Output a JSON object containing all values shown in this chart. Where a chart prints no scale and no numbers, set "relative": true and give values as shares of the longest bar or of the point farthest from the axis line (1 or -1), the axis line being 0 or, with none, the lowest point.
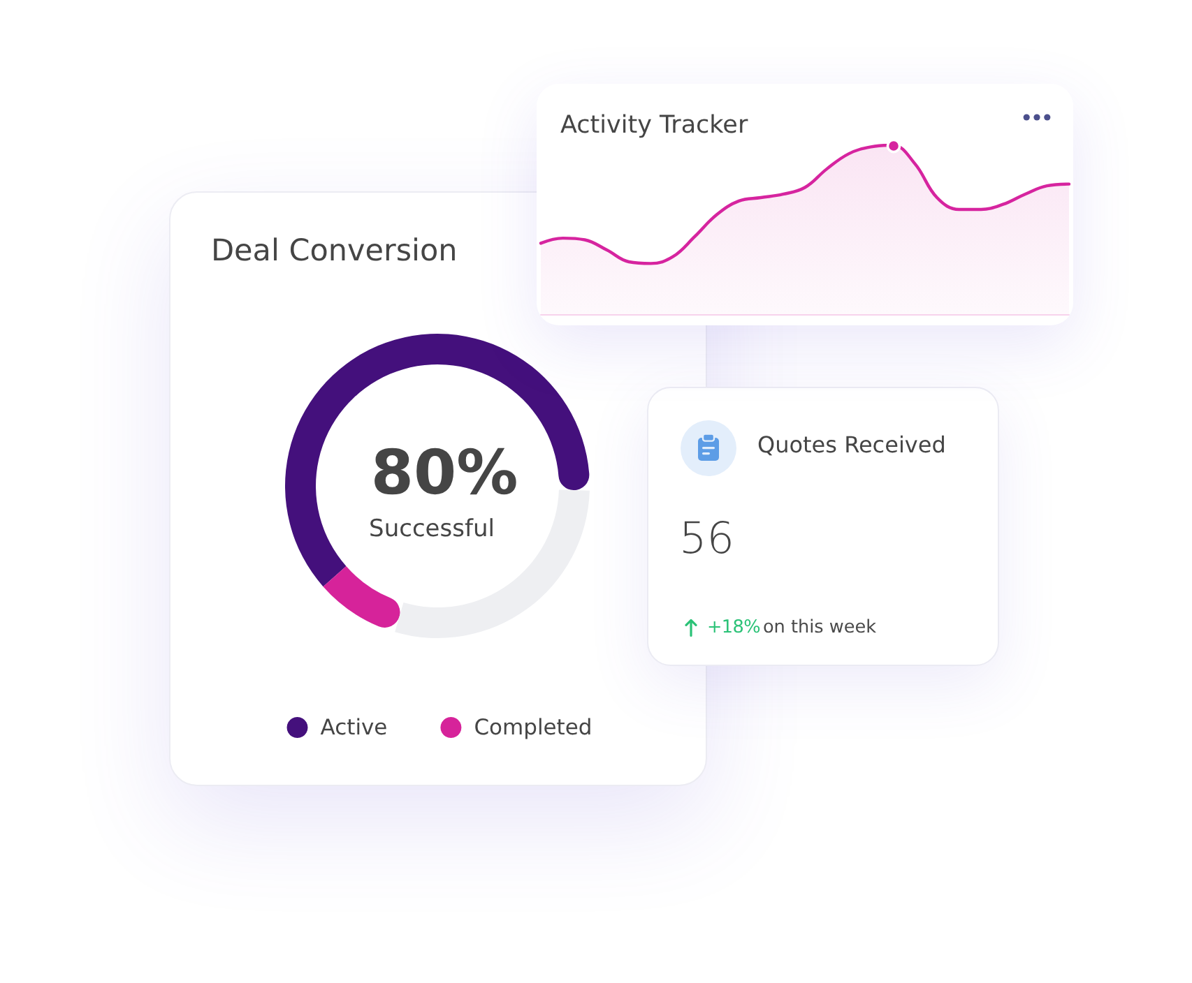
{
  "chart_data": [
    {
      "type": "area",
      "title": "Activity Tracker",
      "relative": true,
      "marker": "none",
      "categories": [
        null,
        null,
        null,
        null,
        null,
        null,
        null,
        null,
        null,
        null,
        null,
        null,
        null,
        null,
        null,
        null,
        null,
        null,
        null,
        null,
        null,
        null,
        null,
        null,
        null
      ],
      "series": [
        {
          "color": "#d6249f",
          "values": [
            0.42,
            0.45,
            0.44,
            0.38,
            0.31,
            0.3,
            0.34,
            0.46,
            0.59,
            0.67,
            0.69,
            0.71,
            0.75,
            0.86,
            0.95,
            0.99,
            1,
            0.89,
            0.69,
            0.62,
            0.62,
            0.65,
            0.71,
            0.76,
            0.77
          ]
        }
      ]
    },
    {
      "type": "donut",
      "title": "Deal Conversion",
      "categories": [
        "Active",
        "Completed",
        null
      ],
      "values": [
        62,
        9,
        29
      ],
      "colors": [
        "#44107c",
        "#d6239a",
        "#eeeff2"
      ],
      "legend": "bottom",
      "annotations": [
        "80%",
        "Successful"
      ]
    },
    {
      "type": "other",
      "title": "Quotes Received",
      "annotations": [
        "56",
        "+18%",
        "on this week"
      ]
    }
  ]
}
